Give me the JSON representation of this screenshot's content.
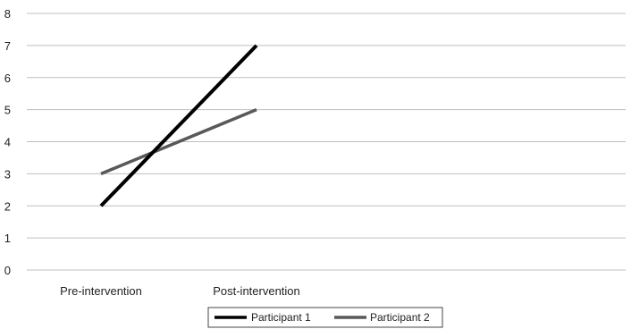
{
  "chart_data": {
    "type": "line",
    "title": "",
    "xlabel": "",
    "ylabel": "",
    "categories": [
      "Pre-intervention",
      "Post-intervention"
    ],
    "yticks": [
      "0",
      "1",
      "2",
      "3",
      "4",
      "5",
      "6",
      "7",
      "8"
    ],
    "ylim": [
      0,
      8
    ],
    "grid": true,
    "legend": "bottom",
    "series": [
      {
        "name": "Participant 1",
        "values": [
          2,
          7
        ],
        "color": "#000000"
      },
      {
        "name": "Participant 2",
        "values": [
          3,
          5
        ],
        "color": "#595959"
      }
    ]
  }
}
